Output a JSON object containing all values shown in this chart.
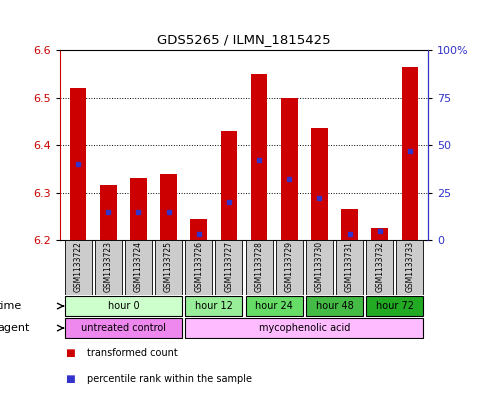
{
  "title": "GDS5265 / ILMN_1815425",
  "samples": [
    "GSM1133722",
    "GSM1133723",
    "GSM1133724",
    "GSM1133725",
    "GSM1133726",
    "GSM1133727",
    "GSM1133728",
    "GSM1133729",
    "GSM1133730",
    "GSM1133731",
    "GSM1133732",
    "GSM1133733"
  ],
  "bar_tops": [
    6.52,
    6.315,
    6.33,
    6.34,
    6.245,
    6.43,
    6.55,
    6.5,
    6.435,
    6.265,
    6.225,
    6.565
  ],
  "bar_base": 6.2,
  "percentile_values": [
    40,
    15,
    15,
    15,
    3,
    20,
    42,
    32,
    22,
    3,
    5,
    47
  ],
  "percentile_scale_max": 100,
  "ylim_left": [
    6.2,
    6.6
  ],
  "ylim_right": [
    0,
    100
  ],
  "yticks_left": [
    6.2,
    6.3,
    6.4,
    6.5,
    6.6
  ],
  "yticks_right": [
    0,
    25,
    50,
    75,
    100
  ],
  "ytick_labels_right": [
    "0",
    "25",
    "50",
    "75",
    "100%"
  ],
  "bar_color": "#cc0000",
  "percentile_color": "#3333cc",
  "bg_color": "#ffffff",
  "plot_bg_color": "#ffffff",
  "time_groups": [
    {
      "label": "hour 0",
      "start": 0,
      "end": 4,
      "color": "#ccffcc"
    },
    {
      "label": "hour 12",
      "start": 4,
      "end": 6,
      "color": "#99ee99"
    },
    {
      "label": "hour 24",
      "start": 6,
      "end": 8,
      "color": "#66dd66"
    },
    {
      "label": "hour 48",
      "start": 8,
      "end": 10,
      "color": "#44bb44"
    },
    {
      "label": "hour 72",
      "start": 10,
      "end": 12,
      "color": "#22aa22"
    }
  ],
  "agent_groups": [
    {
      "label": "untreated control",
      "start": 0,
      "end": 4,
      "color": "#ee88ee"
    },
    {
      "label": "mycophenolic acid",
      "start": 4,
      "end": 12,
      "color": "#ffbbff"
    }
  ],
  "legend_items": [
    {
      "label": "transformed count",
      "color": "#cc0000"
    },
    {
      "label": "percentile rank within the sample",
      "color": "#3333cc"
    }
  ],
  "xlabel_time": "time",
  "xlabel_agent": "agent",
  "sample_bg_color": "#cccccc",
  "left_axis_color": "#cc0000",
  "right_axis_color": "#3333cc",
  "border_color": "#000000"
}
